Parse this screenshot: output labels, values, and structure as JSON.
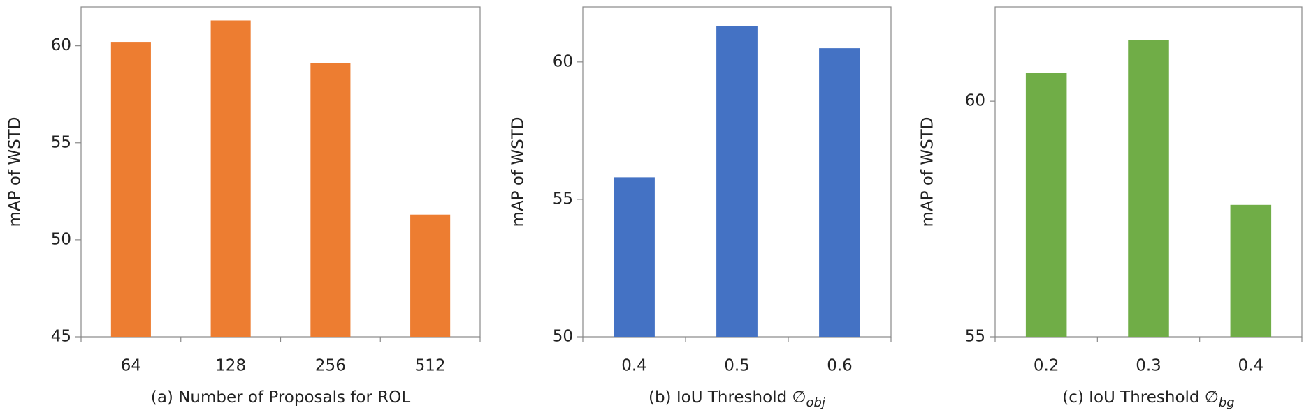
{
  "chart_data": [
    {
      "type": "bar",
      "x_label": "(a) Number of Proposals for ROL",
      "y_label": "mAP of WSTD",
      "categories": [
        "64",
        "128",
        "256",
        "512"
      ],
      "values": [
        60.2,
        61.3,
        59.1,
        51.3
      ],
      "color": "#ed7d31",
      "ylim": [
        45,
        62
      ],
      "yticks": [
        45,
        50,
        55,
        60
      ]
    },
    {
      "type": "bar",
      "x_label": "(b) IoU Threshold ∅",
      "x_label_sub": "obj",
      "y_label": "mAP of WSTD",
      "categories": [
        "0.4",
        "0.5",
        "0.6"
      ],
      "values": [
        55.8,
        61.3,
        60.5
      ],
      "color": "#4472c4",
      "ylim": [
        50,
        62
      ],
      "yticks": [
        50,
        55,
        60
      ]
    },
    {
      "type": "bar",
      "x_label": "(c) IoU Threshold ∅",
      "x_label_sub": "bg",
      "y_label": "mAP of WSTD",
      "categories": [
        "0.2",
        "0.3",
        "0.4"
      ],
      "values": [
        60.6,
        61.3,
        57.8
      ],
      "color": "#70ad47",
      "ylim": [
        55,
        62
      ],
      "yticks": [
        55,
        60
      ]
    }
  ]
}
